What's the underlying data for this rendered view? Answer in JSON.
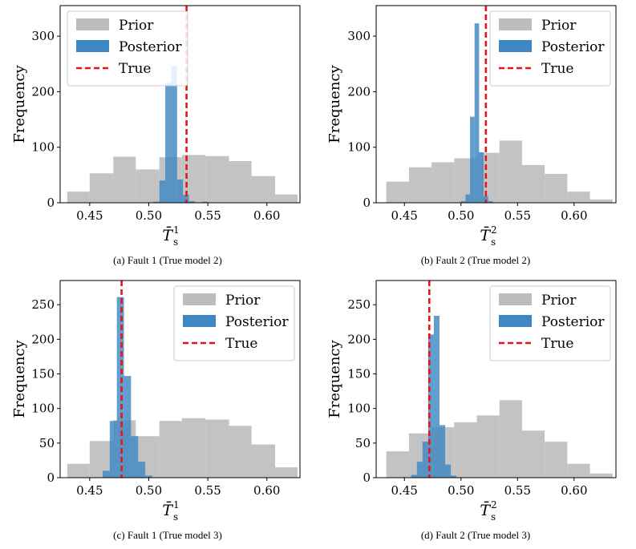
{
  "colors": {
    "prior": "#bdbdbd",
    "posterior": "#3e87c2",
    "true_line": "#e8141b"
  },
  "chart_data": [
    {
      "type": "histogram",
      "caption": "(a) Fault 1 (True model 2)",
      "ylabel": "Frequency",
      "xlabel_base": "T̄",
      "xlabel_sub": "s",
      "xlabel_sup": "1",
      "xlim": [
        0.425,
        0.628
      ],
      "ylim": [
        0,
        355
      ],
      "xticks": [
        0.45,
        0.5,
        0.55,
        0.6
      ],
      "xtick_labels": [
        "0.45",
        "0.50",
        "0.55",
        "0.60"
      ],
      "yticks": [
        0,
        100,
        200,
        300
      ],
      "ytick_labels": [
        "0",
        "100",
        "200",
        "300"
      ],
      "legend": {
        "prior": "Prior",
        "posterior": "Posterior",
        "true": "True",
        "position": "upper-left"
      },
      "true_value": 0.532,
      "prior_bins": [
        {
          "x0": 0.431,
          "x1": 0.45,
          "y": 20
        },
        {
          "x0": 0.45,
          "x1": 0.47,
          "y": 53
        },
        {
          "x0": 0.47,
          "x1": 0.489,
          "y": 83
        },
        {
          "x0": 0.489,
          "x1": 0.509,
          "y": 60
        },
        {
          "x0": 0.509,
          "x1": 0.528,
          "y": 82
        },
        {
          "x0": 0.528,
          "x1": 0.548,
          "y": 86
        },
        {
          "x0": 0.548,
          "x1": 0.568,
          "y": 84
        },
        {
          "x0": 0.568,
          "x1": 0.587,
          "y": 75
        },
        {
          "x0": 0.587,
          "x1": 0.607,
          "y": 48
        },
        {
          "x0": 0.607,
          "x1": 0.626,
          "y": 15
        }
      ],
      "posterior_bins": [
        {
          "x0": 0.504,
          "x1": 0.509,
          "y": 2
        },
        {
          "x0": 0.509,
          "x1": 0.514,
          "y": 40
        },
        {
          "x0": 0.514,
          "x1": 0.519,
          "y": 216
        },
        {
          "x0": 0.519,
          "x1": 0.524,
          "y": 246
        },
        {
          "x0": 0.524,
          "x1": 0.529,
          "y": 42
        },
        {
          "x0": 0.529,
          "x1": 0.534,
          "y": 14
        },
        {
          "x0": 0.534,
          "x1": 0.539,
          "y": 3
        },
        {
          "x0": 0.545,
          "x1": 0.55,
          "y": 2
        }
      ]
    },
    {
      "type": "histogram",
      "caption": "(b) Fault 2 (True model 2)",
      "ylabel": "Frequency",
      "xlabel_base": "T̄",
      "xlabel_sub": "s",
      "xlabel_sup": "2",
      "xlim": [
        0.425,
        0.637
      ],
      "ylim": [
        0,
        355
      ],
      "xticks": [
        0.45,
        0.5,
        0.55,
        0.6
      ],
      "xtick_labels": [
        "0.45",
        "0.50",
        "0.55",
        "0.60"
      ],
      "yticks": [
        0,
        100,
        200,
        300
      ],
      "ytick_labels": [
        "0",
        "100",
        "200",
        "300"
      ],
      "legend": {
        "prior": "Prior",
        "posterior": "Posterior",
        "true": "True",
        "position": "upper-right"
      },
      "true_value": 0.522,
      "prior_bins": [
        {
          "x0": 0.434,
          "x1": 0.454,
          "y": 38
        },
        {
          "x0": 0.454,
          "x1": 0.474,
          "y": 64
        },
        {
          "x0": 0.474,
          "x1": 0.494,
          "y": 73
        },
        {
          "x0": 0.494,
          "x1": 0.514,
          "y": 80
        },
        {
          "x0": 0.514,
          "x1": 0.534,
          "y": 90
        },
        {
          "x0": 0.534,
          "x1": 0.554,
          "y": 112
        },
        {
          "x0": 0.554,
          "x1": 0.574,
          "y": 68
        },
        {
          "x0": 0.574,
          "x1": 0.594,
          "y": 52
        },
        {
          "x0": 0.594,
          "x1": 0.614,
          "y": 20
        },
        {
          "x0": 0.614,
          "x1": 0.634,
          "y": 6
        }
      ],
      "posterior_bins": [
        {
          "x0": 0.5,
          "x1": 0.504,
          "y": 3
        },
        {
          "x0": 0.504,
          "x1": 0.508,
          "y": 15
        },
        {
          "x0": 0.508,
          "x1": 0.512,
          "y": 155
        },
        {
          "x0": 0.512,
          "x1": 0.516,
          "y": 323
        },
        {
          "x0": 0.516,
          "x1": 0.52,
          "y": 91
        },
        {
          "x0": 0.52,
          "x1": 0.524,
          "y": 12
        },
        {
          "x0": 0.524,
          "x1": 0.528,
          "y": 3
        }
      ]
    },
    {
      "type": "histogram",
      "caption": "(c) Fault 1 (True model 3)",
      "ylabel": "Frequency",
      "xlabel_base": "T̄",
      "xlabel_sub": "s",
      "xlabel_sup": "1",
      "xlim": [
        0.425,
        0.628
      ],
      "ylim": [
        0,
        285
      ],
      "xticks": [
        0.45,
        0.5,
        0.55,
        0.6
      ],
      "xtick_labels": [
        "0.45",
        "0.50",
        "0.55",
        "0.60"
      ],
      "yticks": [
        0,
        50,
        100,
        150,
        200,
        250
      ],
      "ytick_labels": [
        "0",
        "50",
        "100",
        "150",
        "200",
        "250"
      ],
      "legend": {
        "prior": "Prior",
        "posterior": "Posterior",
        "true": "True",
        "position": "upper-right"
      },
      "true_value": 0.477,
      "prior_bins": [
        {
          "x0": 0.431,
          "x1": 0.45,
          "y": 20
        },
        {
          "x0": 0.45,
          "x1": 0.47,
          "y": 53
        },
        {
          "x0": 0.47,
          "x1": 0.489,
          "y": 83
        },
        {
          "x0": 0.489,
          "x1": 0.509,
          "y": 60
        },
        {
          "x0": 0.509,
          "x1": 0.528,
          "y": 82
        },
        {
          "x0": 0.528,
          "x1": 0.548,
          "y": 86
        },
        {
          "x0": 0.548,
          "x1": 0.568,
          "y": 84
        },
        {
          "x0": 0.568,
          "x1": 0.587,
          "y": 75
        },
        {
          "x0": 0.587,
          "x1": 0.607,
          "y": 48
        },
        {
          "x0": 0.607,
          "x1": 0.626,
          "y": 15
        }
      ],
      "posterior_bins": [
        {
          "x0": 0.461,
          "x1": 0.467,
          "y": 10
        },
        {
          "x0": 0.467,
          "x1": 0.473,
          "y": 82
        },
        {
          "x0": 0.473,
          "x1": 0.479,
          "y": 261
        },
        {
          "x0": 0.479,
          "x1": 0.485,
          "y": 147
        },
        {
          "x0": 0.485,
          "x1": 0.491,
          "y": 60
        },
        {
          "x0": 0.491,
          "x1": 0.497,
          "y": 23
        },
        {
          "x0": 0.497,
          "x1": 0.503,
          "y": 3
        }
      ]
    },
    {
      "type": "histogram",
      "caption": "(d) Fault 2 (True model 3)",
      "ylabel": "Frequency",
      "xlabel_base": "T̄",
      "xlabel_sub": "s",
      "xlabel_sup": "2",
      "xlim": [
        0.425,
        0.637
      ],
      "ylim": [
        0,
        285
      ],
      "xticks": [
        0.45,
        0.5,
        0.55,
        0.6
      ],
      "xtick_labels": [
        "0.45",
        "0.50",
        "0.55",
        "0.60"
      ],
      "yticks": [
        0,
        50,
        100,
        150,
        200,
        250
      ],
      "ytick_labels": [
        "0",
        "50",
        "100",
        "150",
        "200",
        "250"
      ],
      "legend": {
        "prior": "Prior",
        "posterior": "Posterior",
        "true": "True",
        "position": "upper-right"
      },
      "true_value": 0.472,
      "prior_bins": [
        {
          "x0": 0.434,
          "x1": 0.454,
          "y": 38
        },
        {
          "x0": 0.454,
          "x1": 0.474,
          "y": 64
        },
        {
          "x0": 0.474,
          "x1": 0.494,
          "y": 73
        },
        {
          "x0": 0.494,
          "x1": 0.514,
          "y": 80
        },
        {
          "x0": 0.514,
          "x1": 0.534,
          "y": 90
        },
        {
          "x0": 0.534,
          "x1": 0.554,
          "y": 112
        },
        {
          "x0": 0.554,
          "x1": 0.574,
          "y": 68
        },
        {
          "x0": 0.574,
          "x1": 0.594,
          "y": 52
        },
        {
          "x0": 0.594,
          "x1": 0.614,
          "y": 20
        },
        {
          "x0": 0.614,
          "x1": 0.634,
          "y": 6
        }
      ],
      "posterior_bins": [
        {
          "x0": 0.456,
          "x1": 0.461,
          "y": 4
        },
        {
          "x0": 0.461,
          "x1": 0.466,
          "y": 23
        },
        {
          "x0": 0.466,
          "x1": 0.471,
          "y": 52
        },
        {
          "x0": 0.471,
          "x1": 0.476,
          "y": 207
        },
        {
          "x0": 0.476,
          "x1": 0.481,
          "y": 234
        },
        {
          "x0": 0.481,
          "x1": 0.486,
          "y": 76
        },
        {
          "x0": 0.486,
          "x1": 0.491,
          "y": 19
        },
        {
          "x0": 0.491,
          "x1": 0.496,
          "y": 3
        }
      ]
    }
  ]
}
